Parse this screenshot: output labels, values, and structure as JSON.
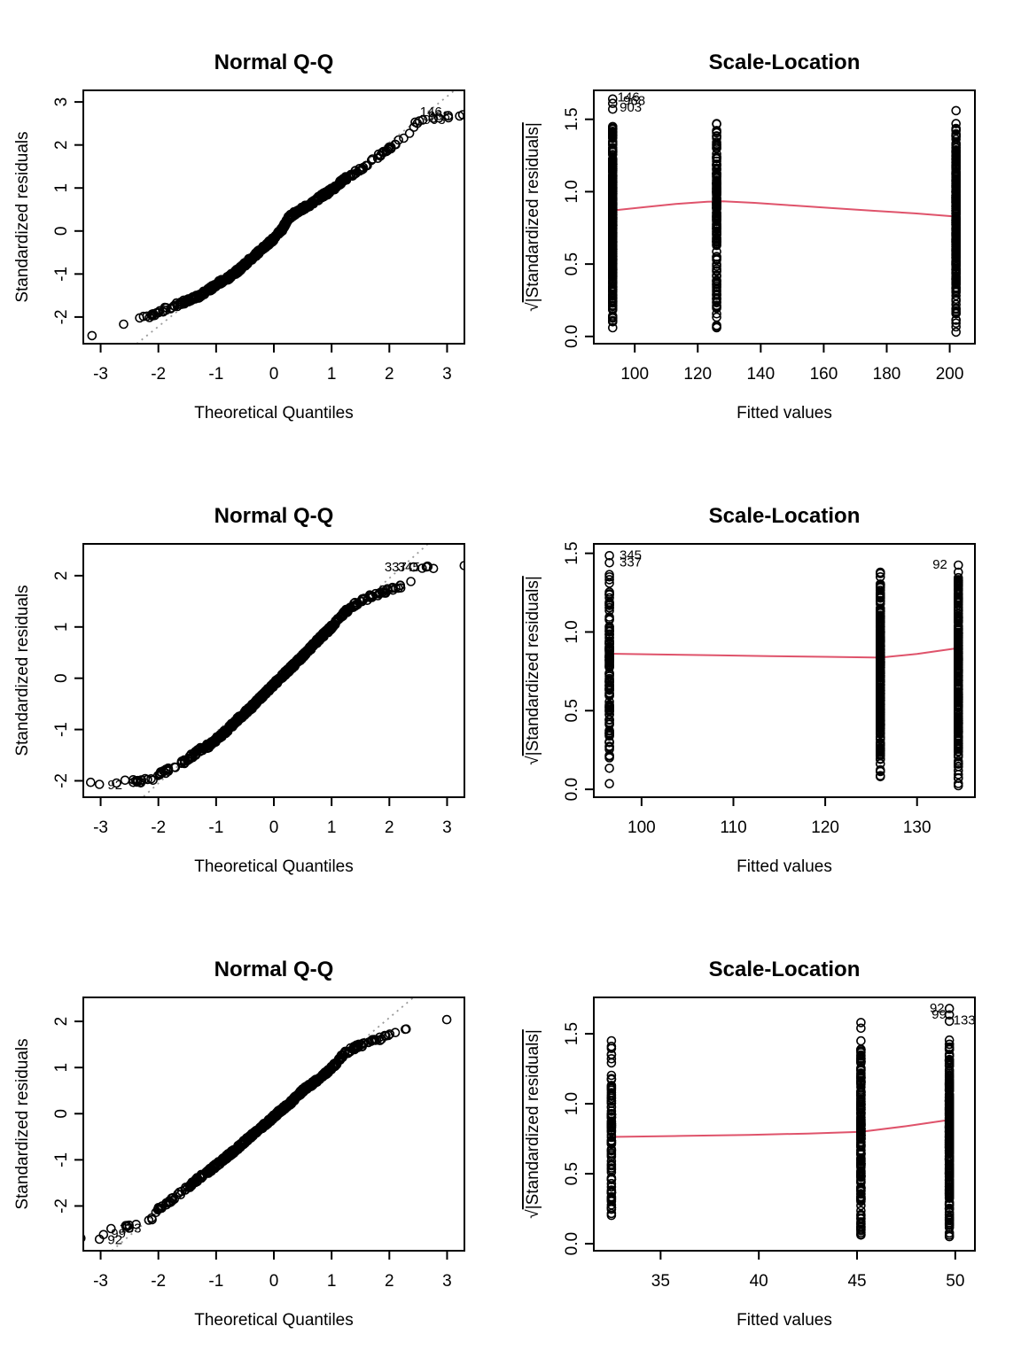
{
  "page": {
    "background": "#ffffff",
    "description": "R regression diagnostic plots, 3 rows x 2 columns"
  },
  "colors": {
    "points": "#000000",
    "smooth_line": "#DF536B",
    "reference_line": "#9a9a9a",
    "box": "#000000",
    "background": "#ffffff"
  },
  "chart_data": [
    {
      "type": "scatter",
      "subtype": "qq",
      "title": "Normal Q-Q",
      "xlabel": "Theoretical Quantiles",
      "ylabel": "Standardized residuals",
      "xlim": [
        -3.3,
        3.3
      ],
      "ylim": [
        -2.62,
        3.27
      ],
      "xticks": [
        -3,
        -2,
        -1,
        0,
        1,
        2,
        3
      ],
      "xtick_labels": [
        "-3",
        "-2",
        "-1",
        "0",
        "1",
        "2",
        "3"
      ],
      "yticks": [
        -2,
        -1,
        0,
        1,
        2,
        3
      ],
      "ytick_labels": [
        "-2",
        "-1",
        "0",
        "1",
        "2",
        "3"
      ],
      "n_points": 600,
      "seed": 7,
      "jitter": 0.05,
      "reference_line": {
        "slope": 1.07,
        "intercept": -0.08,
        "style": "dotted"
      },
      "curve_anchors": [
        [
          -3.02,
          -2.45
        ],
        [
          -2.65,
          -2.17
        ],
        [
          -2.5,
          -2.05
        ],
        [
          -2.38,
          -2.02
        ],
        [
          -2.25,
          -2.03
        ],
        [
          -2.1,
          -1.95
        ],
        [
          -2.0,
          -1.87
        ],
        [
          -1.8,
          -1.78
        ],
        [
          -1.6,
          -1.67
        ],
        [
          -1.45,
          -1.6
        ],
        [
          -1.3,
          -1.52
        ],
        [
          -1.1,
          -1.35
        ],
        [
          -0.95,
          -1.2
        ],
        [
          -0.8,
          -1.1
        ],
        [
          -0.6,
          -0.9
        ],
        [
          -0.4,
          -0.65
        ],
        [
          -0.2,
          -0.42
        ],
        [
          0,
          -0.18
        ],
        [
          0.15,
          0.05
        ],
        [
          0.25,
          0.3
        ],
        [
          0.4,
          0.45
        ],
        [
          0.6,
          0.6
        ],
        [
          0.8,
          0.78
        ],
        [
          1.0,
          0.95
        ],
        [
          1.2,
          1.18
        ],
        [
          1.35,
          1.32
        ],
        [
          1.5,
          1.42
        ],
        [
          1.7,
          1.62
        ],
        [
          1.9,
          1.85
        ],
        [
          2.05,
          1.98
        ],
        [
          2.2,
          2.1
        ],
        [
          2.3,
          2.12
        ],
        [
          2.45,
          2.5
        ],
        [
          2.6,
          2.58
        ],
        [
          2.75,
          2.62
        ],
        [
          3.02,
          2.68
        ]
      ],
      "point_labels": [
        {
          "text": "146",
          "x": 2.72,
          "y": 2.78,
          "anchor": "middle",
          "marker": [
            2.52,
            2.56
          ]
        },
        {
          "text": "968",
          "x": 2.86,
          "y": 2.68,
          "anchor": "middle",
          "marker": [
            2.86,
            2.63
          ]
        },
        {
          "text": "903",
          "x": 2.78,
          "y": 2.59,
          "anchor": "middle",
          "marker": [
            3.02,
            2.68
          ]
        }
      ]
    },
    {
      "type": "scatter",
      "subtype": "scale-location",
      "title": "Scale-Location",
      "xlabel": "Fitted values",
      "ylabel": "√|Standardized residuals|",
      "ylabel_prefix": "√",
      "ylabel_overline": "|Standardized residuals|",
      "xlim": [
        87,
        208
      ],
      "ylim": [
        -0.05,
        1.7
      ],
      "xticks": [
        100,
        120,
        140,
        160,
        180,
        200
      ],
      "xtick_labels": [
        "100",
        "120",
        "140",
        "160",
        "180",
        "200"
      ],
      "yticks": [
        0,
        0.5,
        1,
        1.5
      ],
      "ytick_labels": [
        "0.0",
        "0.5",
        "1.0",
        "1.5"
      ],
      "clusters": [
        {
          "x": 93,
          "n": 300,
          "ymax": 1.45,
          "seed": 11
        },
        {
          "x": 126,
          "n": 155,
          "ymax": 1.47,
          "seed": 12
        },
        {
          "x": 202,
          "n": 280,
          "ymax": 1.45,
          "seed": 13
        }
      ],
      "extra_points": [
        [
          202,
          1.56
        ],
        [
          202,
          1.47
        ],
        [
          202,
          1.43
        ],
        [
          93,
          1.45
        ],
        [
          126,
          1.47
        ],
        [
          202,
          0.03
        ]
      ],
      "smooth_line": [
        [
          93,
          0.87
        ],
        [
          103,
          0.893
        ],
        [
          113,
          0.915
        ],
        [
          123,
          0.93
        ],
        [
          128,
          0.933
        ],
        [
          138,
          0.923
        ],
        [
          150,
          0.905
        ],
        [
          163,
          0.886
        ],
        [
          176,
          0.868
        ],
        [
          189,
          0.85
        ],
        [
          202,
          0.828
        ]
      ],
      "point_labels": [
        {
          "text": "146",
          "x": 94.5,
          "y": 1.655,
          "anchor": "start",
          "marker": [
            93,
            1.64
          ]
        },
        {
          "text": "968",
          "x": 96.3,
          "y": 1.63,
          "anchor": "start",
          "marker": [
            93,
            1.61
          ]
        },
        {
          "text": "903",
          "x": 95.2,
          "y": 1.585,
          "anchor": "start",
          "marker": [
            93,
            1.57
          ]
        }
      ]
    },
    {
      "type": "scatter",
      "subtype": "qq",
      "title": "Normal Q-Q",
      "xlabel": "Theoretical Quantiles",
      "ylabel": "Standardized residuals",
      "xlim": [
        -3.3,
        3.3
      ],
      "ylim": [
        -2.32,
        2.62
      ],
      "xticks": [
        -3,
        -2,
        -1,
        0,
        1,
        2,
        3
      ],
      "xtick_labels": [
        "-3",
        "-2",
        "-1",
        "0",
        "1",
        "2",
        "3"
      ],
      "yticks": [
        -2,
        -1,
        0,
        1,
        2
      ],
      "ytick_labels": [
        "-2",
        "-1",
        "0",
        "1",
        "2"
      ],
      "n_points": 600,
      "seed": 8,
      "jitter": 0.045,
      "reference_line": {
        "slope": 1.0,
        "intercept": -0.05,
        "style": "dotted"
      },
      "curve_anchors": [
        [
          -3.02,
          -2.07
        ],
        [
          -2.7,
          -2.05
        ],
        [
          -2.55,
          -2.0
        ],
        [
          -2.42,
          -2.02
        ],
        [
          -2.3,
          -2.0
        ],
        [
          -2.2,
          -1.98
        ],
        [
          -2.1,
          -1.95
        ],
        [
          -2.0,
          -1.88
        ],
        [
          -1.85,
          -1.8
        ],
        [
          -1.7,
          -1.7
        ],
        [
          -1.55,
          -1.62
        ],
        [
          -1.4,
          -1.5
        ],
        [
          -1.25,
          -1.38
        ],
        [
          -1.1,
          -1.3
        ],
        [
          -0.95,
          -1.15
        ],
        [
          -0.8,
          -1.0
        ],
        [
          -0.6,
          -0.78
        ],
        [
          -0.4,
          -0.58
        ],
        [
          -0.2,
          -0.35
        ],
        [
          0,
          -0.12
        ],
        [
          0.2,
          0.1
        ],
        [
          0.4,
          0.32
        ],
        [
          0.6,
          0.55
        ],
        [
          0.8,
          0.78
        ],
        [
          1.0,
          1.0
        ],
        [
          1.15,
          1.2
        ],
        [
          1.3,
          1.35
        ],
        [
          1.45,
          1.47
        ],
        [
          1.6,
          1.55
        ],
        [
          1.75,
          1.63
        ],
        [
          1.9,
          1.68
        ],
        [
          2.05,
          1.73
        ],
        [
          2.2,
          1.78
        ],
        [
          2.35,
          1.88
        ],
        [
          2.45,
          2.05
        ],
        [
          2.6,
          2.15
        ],
        [
          3.02,
          2.17
        ]
      ],
      "point_labels": [
        {
          "text": "337",
          "x": 2.3,
          "y": 2.17,
          "anchor": "end",
          "marker": [
            2.42,
            2.17
          ]
        },
        {
          "text": "345",
          "x": 2.53,
          "y": 2.17,
          "anchor": "end",
          "marker": [
            2.64,
            2.17
          ]
        },
        {
          "text": "92",
          "x": -2.88,
          "y": -2.08,
          "anchor": "start",
          "marker": [
            -3.02,
            -2.07
          ]
        }
      ]
    },
    {
      "type": "scatter",
      "subtype": "scale-location",
      "title": "Scale-Location",
      "xlabel": "Fitted values",
      "ylabel": "√|Standardized residuals|",
      "ylabel_prefix": "√",
      "ylabel_overline": "|Standardized residuals|",
      "xlim": [
        94.8,
        136.3
      ],
      "ylim": [
        -0.05,
        1.56
      ],
      "xticks": [
        100,
        110,
        120,
        130
      ],
      "xtick_labels": [
        "100",
        "110",
        "120",
        "130"
      ],
      "yticks": [
        0,
        0.5,
        1,
        1.5
      ],
      "ytick_labels": [
        "0.0",
        "0.5",
        "1.0",
        "1.5"
      ],
      "clusters": [
        {
          "x": 96.5,
          "n": 135,
          "ymax": 1.4,
          "seed": 21
        },
        {
          "x": 126,
          "n": 320,
          "ymax": 1.4,
          "seed": 22
        },
        {
          "x": 134.5,
          "n": 300,
          "ymax": 1.4,
          "seed": 23
        }
      ],
      "extra_points": [
        [
          96.5,
          1.35
        ],
        [
          96.5,
          1.31
        ],
        [
          126,
          1.38
        ],
        [
          126,
          1.35
        ],
        [
          134.5,
          1.38
        ],
        [
          134.5,
          0.07
        ]
      ],
      "smooth_line": [
        [
          96.5,
          0.862
        ],
        [
          102,
          0.857
        ],
        [
          108,
          0.852
        ],
        [
          114,
          0.847
        ],
        [
          120,
          0.842
        ],
        [
          126,
          0.837
        ],
        [
          130,
          0.86
        ],
        [
          134.5,
          0.898
        ]
      ],
      "point_labels": [
        {
          "text": "345",
          "x": 97.6,
          "y": 1.49,
          "anchor": "start",
          "marker": [
            96.5,
            1.485
          ]
        },
        {
          "text": "337",
          "x": 97.6,
          "y": 1.445,
          "anchor": "start",
          "marker": [
            96.5,
            1.44
          ]
        },
        {
          "text": "92",
          "x": 133.3,
          "y": 1.43,
          "anchor": "end",
          "marker": [
            134.5,
            1.425
          ]
        }
      ]
    },
    {
      "type": "scatter",
      "subtype": "qq",
      "title": "Normal Q-Q",
      "xlabel": "Theoretical Quantiles",
      "ylabel": "Standardized residuals",
      "xlim": [
        -3.3,
        3.3
      ],
      "ylim": [
        -2.97,
        2.52
      ],
      "xticks": [
        -3,
        -2,
        -1,
        0,
        1,
        2,
        3
      ],
      "xtick_labels": [
        "-3",
        "-2",
        "-1",
        "0",
        "1",
        "2",
        "3"
      ],
      "yticks": [
        -2,
        -1,
        0,
        1,
        2
      ],
      "ytick_labels": [
        "-2",
        "-1",
        "0",
        "1",
        "2"
      ],
      "n_points": 600,
      "seed": 9,
      "jitter": 0.045,
      "reference_line": {
        "slope": 1.05,
        "intercept": -0.02,
        "style": "dotted"
      },
      "curve_anchors": [
        [
          -3.02,
          -2.72
        ],
        [
          -2.9,
          -2.62
        ],
        [
          -2.75,
          -2.55
        ],
        [
          -2.6,
          -2.47
        ],
        [
          -2.5,
          -2.45
        ],
        [
          -2.4,
          -2.42
        ],
        [
          -2.3,
          -2.38
        ],
        [
          -2.2,
          -2.32
        ],
        [
          -2.1,
          -2.3
        ],
        [
          -2.0,
          -2.05
        ],
        [
          -1.9,
          -1.98
        ],
        [
          -1.75,
          -1.85
        ],
        [
          -1.6,
          -1.7
        ],
        [
          -1.45,
          -1.55
        ],
        [
          -1.3,
          -1.4
        ],
        [
          -1.1,
          -1.22
        ],
        [
          -0.9,
          -1.02
        ],
        [
          -0.7,
          -0.82
        ],
        [
          -0.5,
          -0.6
        ],
        [
          -0.3,
          -0.38
        ],
        [
          -0.1,
          -0.18
        ],
        [
          0.1,
          0.05
        ],
        [
          0.3,
          0.25
        ],
        [
          0.5,
          0.5
        ],
        [
          0.7,
          0.68
        ],
        [
          0.9,
          0.88
        ],
        [
          1.05,
          1.05
        ],
        [
          1.2,
          1.28
        ],
        [
          1.35,
          1.4
        ],
        [
          1.5,
          1.48
        ],
        [
          1.7,
          1.58
        ],
        [
          1.9,
          1.65
        ],
        [
          2.05,
          1.78
        ],
        [
          2.2,
          1.83
        ],
        [
          2.4,
          1.9
        ],
        [
          2.65,
          1.97
        ],
        [
          3.02,
          2.0
        ]
      ],
      "point_labels": [
        {
          "text": "133",
          "x": -2.68,
          "y": -2.48,
          "anchor": "start",
          "marker": [
            -2.82,
            -2.49
          ]
        },
        {
          "text": "99",
          "x": -2.82,
          "y": -2.6,
          "anchor": "start",
          "marker": [
            -2.95,
            -2.62
          ]
        },
        {
          "text": "92",
          "x": -2.88,
          "y": -2.73,
          "anchor": "start",
          "marker": [
            -3.02,
            -2.72
          ]
        }
      ]
    },
    {
      "type": "scatter",
      "subtype": "scale-location",
      "title": "Scale-Location",
      "xlabel": "Fitted values",
      "ylabel": "√|Standardized residuals|",
      "ylabel_prefix": "√",
      "ylabel_overline": "|Standardized residuals|",
      "xlim": [
        31.6,
        51.0
      ],
      "ylim": [
        -0.05,
        1.76
      ],
      "xticks": [
        35,
        40,
        45,
        50
      ],
      "xtick_labels": [
        "35",
        "40",
        "45",
        "50"
      ],
      "yticks": [
        0,
        0.5,
        1,
        1.5
      ],
      "ytick_labels": [
        "0.0",
        "0.5",
        "1.0",
        "1.5"
      ],
      "clusters": [
        {
          "x": 32.5,
          "n": 95,
          "ymax": 1.45,
          "seed": 31
        },
        {
          "x": 45.2,
          "n": 210,
          "ymax": 1.45,
          "seed": 32
        },
        {
          "x": 49.7,
          "n": 260,
          "ymax": 1.45,
          "seed": 33
        }
      ],
      "extra_points": [
        [
          45.2,
          1.58
        ],
        [
          45.2,
          1.54
        ],
        [
          45.2,
          0.08
        ],
        [
          32.5,
          1.45
        ],
        [
          32.5,
          1.41
        ],
        [
          49.7,
          1.455
        ],
        [
          49.7,
          0.13
        ]
      ],
      "smooth_line": [
        [
          32.5,
          0.763
        ],
        [
          36,
          0.77
        ],
        [
          39.5,
          0.778
        ],
        [
          42.5,
          0.787
        ],
        [
          45.2,
          0.8
        ],
        [
          47.5,
          0.84
        ],
        [
          49.7,
          0.885
        ]
      ],
      "point_labels": [
        {
          "text": "92",
          "x": 49.45,
          "y": 1.685,
          "anchor": "end",
          "marker": [
            49.7,
            1.68
          ]
        },
        {
          "text": "99",
          "x": 49.55,
          "y": 1.64,
          "anchor": "end",
          "marker": [
            49.7,
            1.635
          ]
        },
        {
          "text": "133",
          "x": 49.9,
          "y": 1.598,
          "anchor": "start",
          "marker": [
            49.7,
            1.59
          ]
        }
      ]
    }
  ]
}
